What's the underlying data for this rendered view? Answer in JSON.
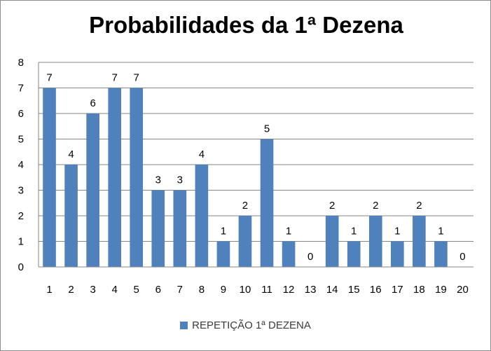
{
  "chart_data": {
    "type": "bar",
    "title": "Probabilidades da 1ª Dezena",
    "categories": [
      "1",
      "2",
      "3",
      "4",
      "5",
      "6",
      "7",
      "8",
      "9",
      "10",
      "11",
      "12",
      "13",
      "14",
      "15",
      "16",
      "17",
      "18",
      "19",
      "20"
    ],
    "series": [
      {
        "name": "REPETIÇÃO 1ª DEZENA",
        "values": [
          7,
          4,
          6,
          7,
          7,
          3,
          3,
          4,
          1,
          2,
          5,
          1,
          0,
          2,
          1,
          2,
          1,
          2,
          1,
          0
        ],
        "color": "#4f81bd"
      }
    ],
    "ylim": [
      0,
      8
    ],
    "yticks": [
      0,
      1,
      2,
      3,
      4,
      5,
      6,
      7,
      8
    ],
    "grid": true,
    "data_labels": true,
    "legend_position": "bottom"
  }
}
